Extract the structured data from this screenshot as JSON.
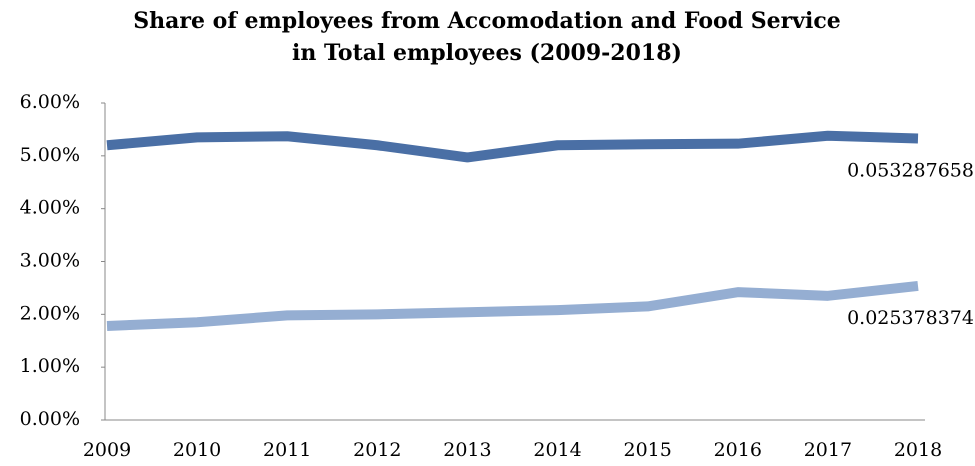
{
  "chart_data": {
    "type": "line",
    "title": [
      "Share of employees from Accomodation and Food Service",
      "in Total employees (2009-2018)"
    ],
    "categories": [
      "2009",
      "2010",
      "2011",
      "2012",
      "2013",
      "2014",
      "2015",
      "2016",
      "2017",
      "2018"
    ],
    "series": [
      {
        "color": "#4a6fa5",
        "values": [
          5.2,
          5.35,
          5.37,
          5.2,
          4.97,
          5.2,
          5.22,
          5.23,
          5.38,
          5.3287658
        ],
        "value_labels": [
          null,
          null,
          null,
          null,
          null,
          null,
          null,
          null,
          null,
          "0.053287658"
        ]
      },
      {
        "color": "#95aed2",
        "values": [
          1.78,
          1.85,
          1.98,
          2.0,
          2.04,
          2.08,
          2.15,
          2.42,
          2.35,
          2.5378374
        ],
        "value_labels": [
          null,
          null,
          null,
          null,
          null,
          null,
          null,
          null,
          null,
          "0.025378374"
        ]
      }
    ],
    "ylim": [
      0,
      6
    ],
    "yticks": [
      {
        "value": 0,
        "label": "0.00%"
      },
      {
        "value": 1,
        "label": "1.00%"
      },
      {
        "value": 2,
        "label": "2.00%"
      },
      {
        "value": 3,
        "label": "3.00%"
      },
      {
        "value": 4,
        "label": "4.00%"
      },
      {
        "value": 5,
        "label": "5.00%"
      },
      {
        "value": 6,
        "label": "6.00%"
      }
    ],
    "grid": false
  }
}
